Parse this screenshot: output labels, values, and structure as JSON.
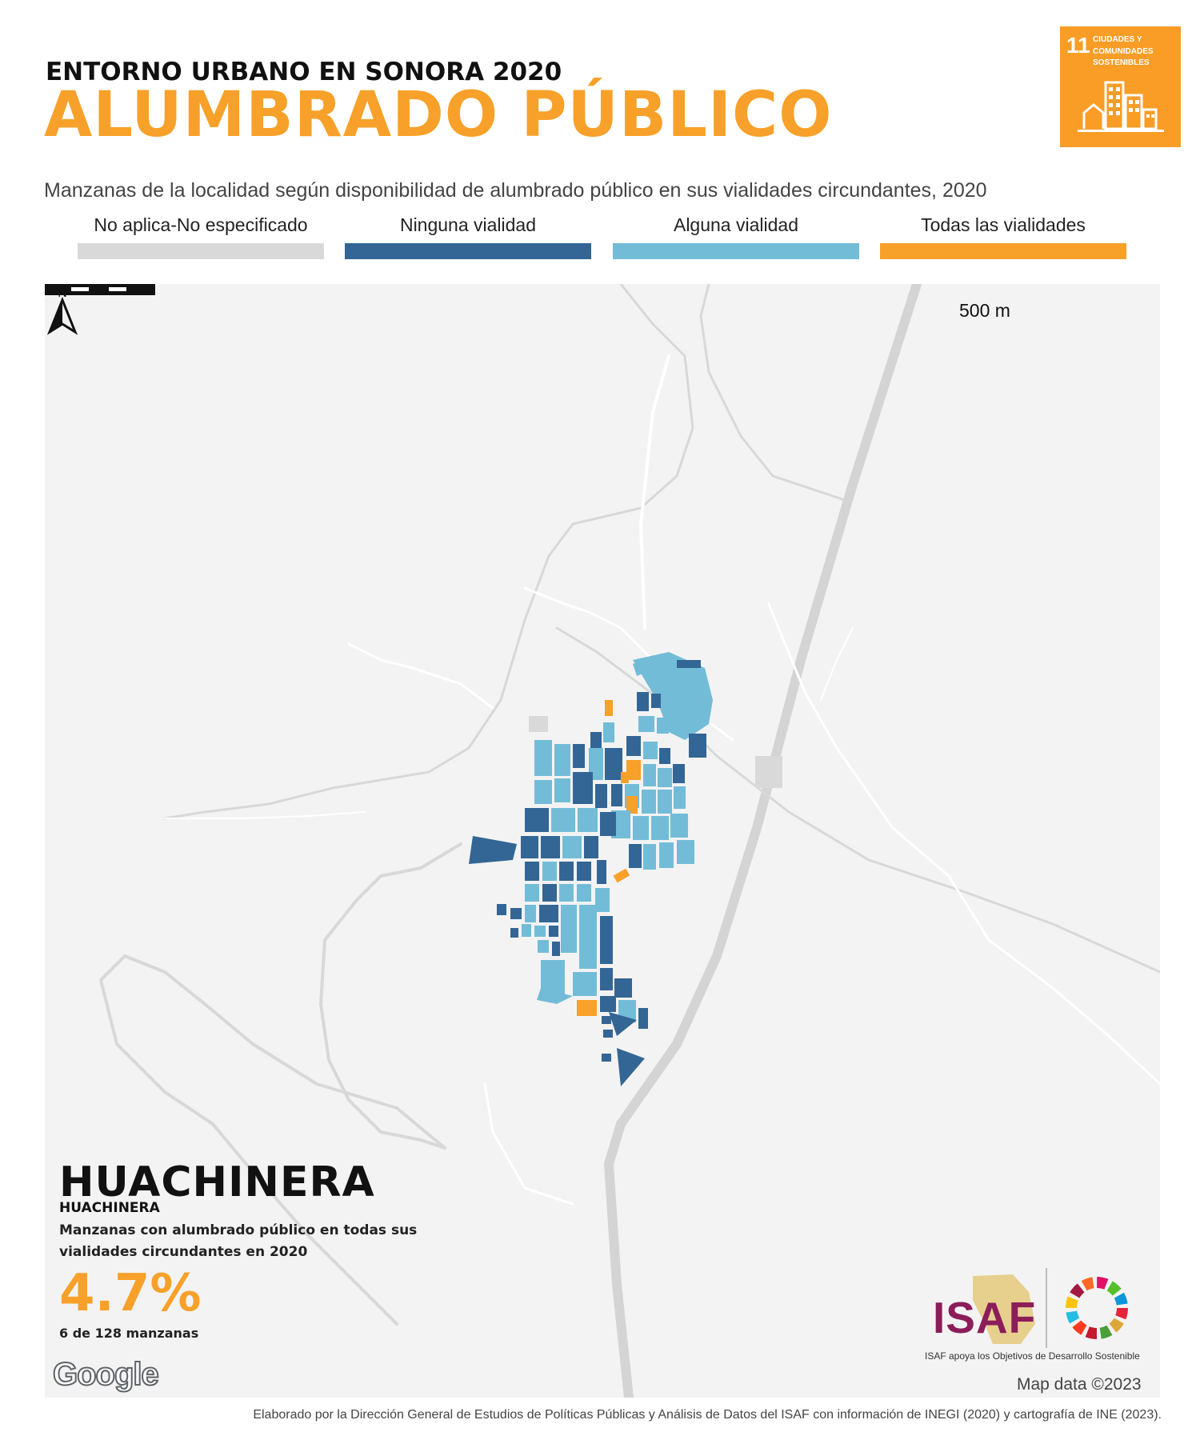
{
  "header": {
    "supertitle": "ENTORNO URBANO EN SONORA 2020",
    "title": "ALUMBRADO PÚBLICO",
    "subtitle": "Manzanas de la localidad según disponibilidad de alumbrado público en sus vialidades circundantes, 2020"
  },
  "ods_badge": {
    "number": "11",
    "text": "CIUDADES Y COMUNIDADES SOSTENIBLES",
    "color": "#f99d26",
    "icon": "city-buildings-icon"
  },
  "legend": [
    {
      "label": "No aplica-No especificado",
      "color": "#d9d9d9"
    },
    {
      "label": "Ninguna vialidad",
      "color": "#336694"
    },
    {
      "label": "Alguna vialidad",
      "color": "#73bcd7"
    },
    {
      "label": "Todas las vialidades",
      "color": "#f7a12a"
    }
  ],
  "map": {
    "scale_label": "500 m",
    "north_label": "N",
    "locality": "HUACHINERA",
    "municipality": "HUACHINERA",
    "description": "Manzanas con alumbrado público en todas sus vialidades circundantes en 2020",
    "percent": "4.7%",
    "count": "6 de 128 manzanas",
    "basemap_logo": "Google",
    "map_data": "Map data ©2023"
  },
  "isaf": {
    "logo": "ISAF",
    "caption": "ISAF apoya los Objetivos de Desarrollo Sostenible"
  },
  "footer": "Elaborado por la Dirección General de Estudios de Políticas Públicas y Análisis de Datos del ISAF con información de INEGI (2020) y cartografía de INE (2023)."
}
